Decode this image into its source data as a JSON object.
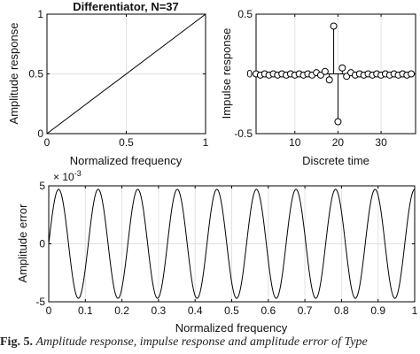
{
  "chart_data": [
    {
      "id": "amp",
      "type": "line",
      "title": "Differentiator, N=37",
      "xlabel": "Normalized frequency",
      "ylabel": "Amplitude response",
      "xlim": [
        0,
        1
      ],
      "ylim": [
        0,
        1
      ],
      "xticks": [
        0,
        0.5,
        1
      ],
      "xtick_labels": [
        "0",
        "0.5",
        "1"
      ],
      "yticks": [
        0,
        0.5,
        1
      ],
      "ytick_labels": [
        "0",
        "0.5",
        "1"
      ],
      "grid": true,
      "series": [
        {
          "x": [
            0,
            1
          ],
          "y": [
            0,
            1
          ]
        }
      ]
    },
    {
      "id": "imp",
      "type": "stem",
      "title": "",
      "xlabel": "Discrete time",
      "ylabel": "Impulse response",
      "xlim": [
        1,
        38
      ],
      "ylim": [
        -0.5,
        0.5
      ],
      "xticks": [
        10,
        20,
        30
      ],
      "xtick_labels": [
        "10",
        "20",
        "30"
      ],
      "yticks": [
        -0.5,
        0,
        0.5
      ],
      "ytick_labels": [
        "-0.5",
        "0",
        "0.5"
      ],
      "grid": true,
      "series": [
        {
          "x": [
            1,
            2,
            3,
            4,
            5,
            6,
            7,
            8,
            9,
            10,
            11,
            12,
            13,
            14,
            15,
            16,
            17,
            18,
            19,
            20,
            21,
            22,
            23,
            24,
            25,
            26,
            27,
            28,
            29,
            30,
            31,
            32,
            33,
            34,
            35,
            36,
            37
          ],
          "y": [
            0.0,
            -0.01,
            0.0,
            -0.01,
            0.0,
            -0.01,
            0.0,
            -0.01,
            0.0,
            -0.01,
            0.0,
            -0.01,
            0.0,
            -0.01,
            0.01,
            -0.01,
            0.02,
            -0.05,
            0.4,
            -0.4,
            0.05,
            -0.02,
            0.01,
            -0.01,
            0.0,
            -0.01,
            0.0,
            -0.01,
            0.0,
            -0.01,
            0.0,
            -0.01,
            0.0,
            -0.01,
            0.0,
            -0.01,
            0.0
          ]
        }
      ]
    },
    {
      "id": "err",
      "type": "line",
      "title": "",
      "xlabel": "Normalized frequency",
      "ylabel": "Amplitude error",
      "y_multiplier": "× 10",
      "y_multiplier_exp": "-3",
      "xlim": [
        0,
        1
      ],
      "ylim": [
        -0.005,
        0.005
      ],
      "xticks": [
        0,
        0.1,
        0.2,
        0.3,
        0.4,
        0.5,
        0.6,
        0.7,
        0.8,
        0.9,
        1
      ],
      "xtick_labels": [
        "0",
        "0.1",
        "0.2",
        "0.3",
        "0.4",
        "0.5",
        "0.6",
        "0.7",
        "0.8",
        "0.9",
        "1"
      ],
      "yticks": [
        -0.005,
        0,
        0.005
      ],
      "ytick_labels": [
        "-5",
        "0",
        "5"
      ],
      "grid": true,
      "series": [
        {
          "formula": "y = 0.0047 * sin(2*pi*9.25*x)",
          "amplitude": 0.0047,
          "cycles": 9.25
        }
      ]
    }
  ],
  "caption": {
    "prefix": "Fig. 5.",
    "text": "Amplitude response, impulse response and amplitude error of Type"
  }
}
